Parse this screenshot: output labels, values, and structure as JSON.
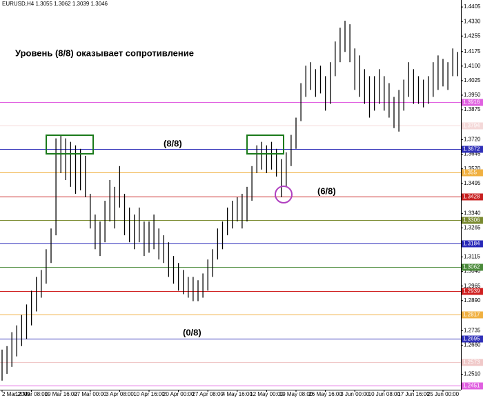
{
  "chart_data": {
    "type": "range-bar",
    "title": "EURUSD,H4  1.3055 1.3062 1.3039 1.3046",
    "annotations": [
      "Уровень (8/8) оказывает сопротивление",
      "(8/8)",
      "(6/8)",
      "(0/8)"
    ],
    "color": "#000000",
    "categories": [
      "2 Mar 2009",
      null,
      null,
      null,
      null,
      null,
      "12 Mar 08:00",
      null,
      null,
      null,
      null,
      null,
      "19 Mar 16:00",
      null,
      null,
      null,
      null,
      null,
      "27 Mar 00:00",
      null,
      null,
      null,
      null,
      null,
      "3 Apr 08:00",
      null,
      null,
      null,
      null,
      null,
      "10 Apr 16:00",
      null,
      null,
      null,
      null,
      null,
      "20 Apr 00:00",
      null,
      null,
      null,
      null,
      null,
      "27 Apr 08:00",
      null,
      null,
      null,
      null,
      null,
      "4 May 16:00",
      null,
      null,
      null,
      null,
      null,
      "12 May 00:00",
      null,
      null,
      null,
      null,
      null,
      "19 May 08:00",
      null,
      null,
      null,
      null,
      null,
      "26 May 16:00",
      null,
      null,
      null,
      null,
      null,
      "3 Jun 00:00",
      null,
      null,
      null,
      null,
      null,
      "10 Jun 08:00",
      null,
      null,
      null,
      null,
      null,
      "17 Jun 16:00",
      null,
      null,
      null,
      null,
      null,
      "25 Jun 00:00",
      null,
      null,
      null
    ],
    "highs": [
      1.2637,
      1.2655,
      1.2727,
      1.2762,
      1.2816,
      1.287,
      1.2941,
      1.3012,
      1.3048,
      1.3155,
      1.3262,
      1.3727,
      1.3745,
      1.3727,
      1.3709,
      1.3691,
      1.3673,
      1.3637,
      1.3441,
      1.3334,
      1.3298,
      1.3405,
      1.3512,
      1.3477,
      1.3584,
      1.3441,
      1.337,
      1.3334,
      1.337,
      1.3298,
      1.3298,
      1.3334,
      1.3262,
      1.3227,
      1.3191,
      1.312,
      1.3084,
      1.3048,
      1.3012,
      1.3012,
      1.2995,
      1.303,
      1.3102,
      1.3155,
      1.3262,
      1.3298,
      1.337,
      1.3405,
      1.3423,
      1.3441,
      1.3477,
      1.3584,
      1.3691,
      1.3709,
      1.3691,
      1.3709,
      1.3673,
      1.362,
      1.3655,
      1.3745,
      1.3834,
      1.4012,
      1.4102,
      1.412,
      1.4084,
      1.4102,
      1.4048,
      1.412,
      1.4227,
      1.4298,
      1.4334,
      1.4316,
      1.4191,
      1.4155,
      1.4084,
      1.4048,
      1.4048,
      1.4084,
      1.4048,
      1.4012,
      1.3941,
      1.3977,
      1.403,
      1.412,
      1.4084,
      1.4048,
      1.403,
      1.4048,
      1.412,
      1.4155,
      1.4137,
      1.412,
      1.4191,
      1.4173
    ],
    "lows": [
      1.2477,
      1.2512,
      1.2548,
      1.2602,
      1.2655,
      1.2691,
      1.2762,
      1.2834,
      1.2905,
      1.2977,
      1.3084,
      1.3227,
      1.3548,
      1.3512,
      1.3477,
      1.3441,
      1.3459,
      1.3423,
      1.3262,
      1.3155,
      1.312,
      1.3191,
      1.3298,
      1.3262,
      1.337,
      1.3227,
      1.3191,
      1.3155,
      1.3191,
      1.312,
      1.3137,
      1.3155,
      1.3102,
      1.3084,
      1.3012,
      1.2977,
      1.2941,
      1.2923,
      1.2905,
      1.2887,
      1.2887,
      1.2905,
      1.2941,
      1.3012,
      1.3102,
      1.3155,
      1.3227,
      1.3262,
      1.3298,
      1.3262,
      1.3298,
      1.3405,
      1.3548,
      1.3566,
      1.3548,
      1.3566,
      1.353,
      1.3423,
      1.3477,
      1.3584,
      1.3673,
      1.3816,
      1.3941,
      1.3977,
      1.3941,
      1.3959,
      1.387,
      1.3905,
      1.4048,
      1.412,
      1.4173,
      1.412,
      1.3977,
      1.3941,
      1.3905,
      1.3834,
      1.387,
      1.3905,
      1.387,
      1.3834,
      1.378,
      1.3762,
      1.387,
      1.3941,
      1.3905,
      1.3905,
      1.3887,
      1.3905,
      1.3941,
      1.3977,
      1.3995,
      1.3977,
      1.4048,
      1.4048
    ],
    "levels": [
      {
        "value": 1.3916,
        "color": "#e060e0"
      },
      {
        "value": 1.3794,
        "color": "#f4d8d8"
      },
      {
        "value": 1.3672,
        "color": "#3030b8"
      },
      {
        "value": 1.355,
        "color": "#f0b040"
      },
      {
        "value": 1.3428,
        "color": "#c82020"
      },
      {
        "value": 1.3306,
        "color": "#7a8a30"
      },
      {
        "value": 1.3184,
        "color": "#2828b8"
      },
      {
        "value": 1.3062,
        "color": "#4a8a3a"
      },
      {
        "value": 1.2939,
        "color": "#d02020"
      },
      {
        "value": 1.2817,
        "color": "#f0b040"
      },
      {
        "value": 1.2695,
        "color": "#3030b8"
      },
      {
        "value": 1.2573,
        "color": "#f0c8c8"
      },
      {
        "value": 1.2451,
        "color": "#e060e0"
      }
    ],
    "ylim": [
      1.243,
      1.4441
    ],
    "yticks": [
      1.4405,
      {
        "value": 1.433,
        "label": "1.4330"
      },
      1.4255,
      1.4175,
      {
        "value": 1.41,
        "label": "1.4100"
      },
      1.4025,
      {
        "value": 1.395,
        "label": "1.3950"
      },
      1.3875,
      {
        "value": 1.372,
        "label": "1.3720"
      },
      1.3645,
      {
        "value": 1.357,
        "label": "1.3570"
      },
      1.3495,
      {
        "value": 1.334,
        "label": "1.3340"
      },
      1.3265,
      1.3115,
      {
        "value": 1.304,
        "label": "1.3040"
      },
      1.2965,
      {
        "value": 1.289,
        "label": "1.2890"
      },
      1.2735,
      {
        "value": 1.266,
        "label": "1.2660"
      },
      {
        "value": 1.251,
        "label": "1.2510"
      }
    ]
  }
}
